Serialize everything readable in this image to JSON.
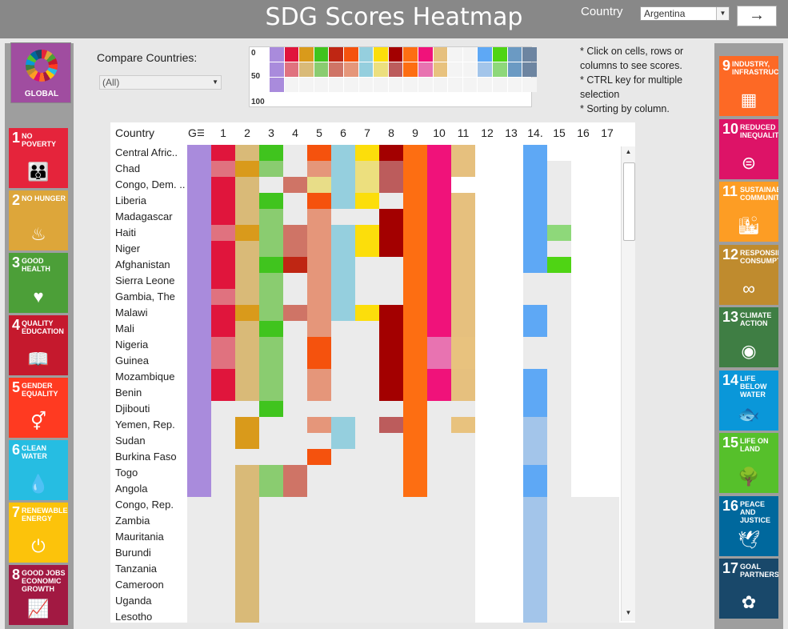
{
  "header": {
    "title": "SDG Scores Heatmap",
    "country_label": "Country",
    "country_value": "Argentina",
    "go_icon": "arrow-right-icon",
    "go_glyph": "→"
  },
  "global_tile": {
    "label": "GLOBAL",
    "icon": "sdg-wheel-icon"
  },
  "compare": {
    "label": "Compare Countries:",
    "value": "(All)"
  },
  "mini_legend": {
    "ticks": [
      "0",
      "50",
      "100"
    ]
  },
  "notes": [
    "* Click on cells, rows or columns to see scores.",
    "*  CTRL key for multiple selection",
    "* Sorting by column."
  ],
  "goals_left": [
    {
      "num": "1",
      "name": "No Poverty",
      "color": "#e5243b",
      "icon": "family-icon",
      "glyph": "👪"
    },
    {
      "num": "2",
      "name": "No Hunger",
      "color": "#dda63a",
      "icon": "bowl-icon",
      "glyph": "♨"
    },
    {
      "num": "3",
      "name": "Good Health",
      "color": "#4c9f38",
      "icon": "heartbeat-icon",
      "glyph": "♥"
    },
    {
      "num": "4",
      "name": "Quality Education",
      "color": "#c5192d",
      "icon": "book-icon",
      "glyph": "📖"
    },
    {
      "num": "5",
      "name": "Gender Equality",
      "color": "#ff3a21",
      "icon": "gender-icon",
      "glyph": "⚥"
    },
    {
      "num": "6",
      "name": "Clean Water",
      "color": "#26bde2",
      "icon": "water-drop-icon",
      "glyph": "💧"
    },
    {
      "num": "7",
      "name": "Renewable Energy",
      "color": "#fcc30b",
      "icon": "power-icon",
      "glyph": "⏻"
    },
    {
      "num": "8",
      "name": "Good Jobs Economic Growth",
      "color": "#a21942",
      "icon": "growth-chart-icon",
      "glyph": "📈"
    }
  ],
  "goals_right": [
    {
      "num": "9",
      "name": "Industry, Infrastructure",
      "color": "#fd6925",
      "icon": "cubes-icon",
      "glyph": "▦"
    },
    {
      "num": "10",
      "name": "Reduced Inequalities",
      "color": "#dd1367",
      "icon": "equals-icon",
      "glyph": "⊜"
    },
    {
      "num": "11",
      "name": "Sustainable Communities",
      "color": "#fd9d24",
      "icon": "buildings-icon",
      "glyph": "🏙"
    },
    {
      "num": "12",
      "name": "Responsible Consumption",
      "color": "#bf8b2e",
      "icon": "infinity-icon",
      "glyph": "∞"
    },
    {
      "num": "13",
      "name": "Climate Action",
      "color": "#3f7e44",
      "icon": "eye-globe-icon",
      "glyph": "◉"
    },
    {
      "num": "14",
      "name": "Life Below Water",
      "color": "#0a97d9",
      "icon": "fish-icon",
      "glyph": "🐟"
    },
    {
      "num": "15",
      "name": "Life On Land",
      "color": "#56c02b",
      "icon": "tree-icon",
      "glyph": "🌳"
    },
    {
      "num": "16",
      "name": "Peace and Justice",
      "color": "#00689d",
      "icon": "dove-icon",
      "glyph": "🕊"
    },
    {
      "num": "17",
      "name": "Goal Partners",
      "color": "#19486a",
      "icon": "rings-icon",
      "glyph": "✿"
    }
  ],
  "heatmap": {
    "header_country": "Country",
    "header_g": "G",
    "sort_icon": "sort-icon",
    "columns": [
      "1",
      "2",
      "3",
      "4",
      "5",
      "6",
      "7",
      "8",
      "9",
      "10",
      "11",
      "12",
      "13",
      "14.",
      "15",
      "16",
      "17"
    ],
    "countries": [
      "Central Afric..",
      "Chad",
      "Congo, Dem. ..",
      "Liberia",
      "Madagascar",
      "Haiti",
      "Niger",
      "Afghanistan",
      "Sierra Leone",
      "Gambia, The",
      "Malawi",
      "Mali",
      "Nigeria",
      "Guinea",
      "Mozambique",
      "Benin",
      "Djibouti",
      "Yemen, Rep.",
      "Sudan",
      "Burkina Faso",
      "Togo",
      "Angola",
      "Congo, Rep.",
      "Zambia",
      "Mauritania",
      "Burundi",
      "Tanzania",
      "Cameroon",
      "Uganda",
      "Lesotho"
    ],
    "goal_colors": {
      "g": [
        "#a98bdc",
        "#a98bdc",
        "#a98bdc"
      ],
      "1": [
        "#e0153c",
        "#e0727f",
        "#ffffff"
      ],
      "2": [
        "#d99a1b",
        "#d9ba78",
        "#ffffff"
      ],
      "3": [
        "#40c41e",
        "#8acc70",
        "#ffffff"
      ],
      "4": [
        "#bf2613",
        "#cf7466",
        "#ffffff"
      ],
      "5": [
        "#f5520d",
        "#e5967a",
        "#ffffff"
      ],
      "6": [
        "#95cfde",
        "#95cfde",
        "#ffffff"
      ],
      "7": [
        "#fcde0b",
        "#ecdf7e",
        "#ffffff"
      ],
      "8": [
        "#a30000",
        "#bc5c5c",
        "#ffffff"
      ],
      "9": [
        "#fd6e12",
        "#fd6e12",
        "#ffffff"
      ],
      "10": [
        "#f0127a",
        "#e873b1",
        "#ffffff"
      ],
      "11": [
        "#e6c07e",
        "#e8c27e",
        "#ffffff"
      ],
      "12": [
        "#ffffff",
        "#ffffff",
        "#ffffff"
      ],
      "13": [
        "#ffffff",
        "#ffffff",
        "#ffffff"
      ],
      "14": [
        "#5ea8f5",
        "#a3c5ea",
        "#ffffff"
      ],
      "15": [
        "#4fd414",
        "#8ed87a",
        "#ffffff"
      ],
      "16": [
        "#6b9ac3",
        "#6b9ac3",
        "#ffffff"
      ],
      "17": [
        "#6d85a1",
        "#6d85a1",
        "#ffffff"
      ]
    },
    "cells": [
      "a12131111211001000",
      "a21232122211001300",
      "a12324122210201300",
      "a12131113211001300",
      "a12232331211001300",
      "a21222111211001200",
      "a12222111211001300",
      "a12112133211001100",
      "a12232133211003300",
      "a22232133211003300",
      "a11222111211001300",
      "a12132331211001300",
      "a22231331222003300",
      "a22231331222003300",
      "a12232331211001300",
      "a12232331211001300",
      "a33133333133001300",
      "a31332132232002300",
      "a31333233233002300",
      "a33331333233002300",
      "a32223333233001300",
      "a32223333233001300",
      "332333333333002333",
      "332333333333002333",
      "332333333333002333",
      "332333333333002333",
      "332333333333002333",
      "332333333333002333",
      "332333333333002333",
      "332333333333002333"
    ]
  }
}
